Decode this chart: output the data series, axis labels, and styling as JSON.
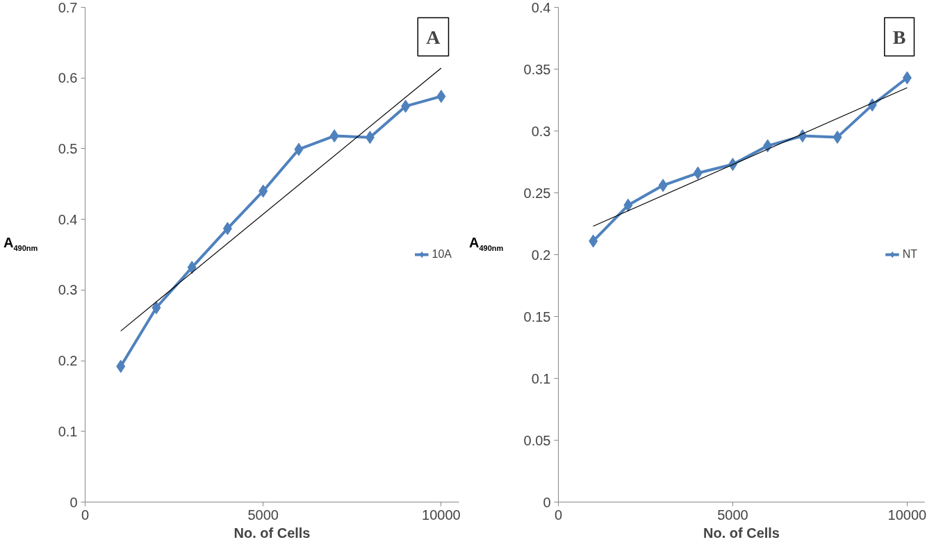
{
  "chart_data": [
    {
      "type": "line",
      "annotations": [
        "A"
      ],
      "xlabel": "No. of Cells",
      "ylabel": "A$_{490nm}$",
      "xlim": [
        0,
        10500
      ],
      "xticks": [
        0,
        5000,
        10000
      ],
      "ylim": [
        0,
        0.7
      ],
      "yticks": [
        0,
        0.1,
        0.2,
        0.3,
        0.4,
        0.5,
        0.6,
        0.7
      ],
      "grid": false,
      "legend": "right",
      "line_style": "solid",
      "series": [
        {
          "name": "10A",
          "color": "#4f81bd",
          "marker": "diamond",
          "x": [
            1000,
            2000,
            3000,
            4000,
            5000,
            6000,
            7000,
            8000,
            9000,
            10000
          ],
          "values": [
            0.192,
            0.275,
            0.332,
            0.387,
            0.44,
            0.499,
            0.518,
            0.516,
            0.56,
            0.574
          ]
        },
        {
          "color": "#000000",
          "marker": "none",
          "x": [
            1000,
            10000
          ],
          "values": [
            0.242,
            0.614
          ]
        }
      ]
    },
    {
      "type": "line",
      "annotations": [
        "B"
      ],
      "xlabel": "No. of Cells",
      "ylabel": "A$_{490nm}$",
      "xlim": [
        0,
        10500
      ],
      "xticks": [
        0,
        5000,
        10000
      ],
      "ylim": [
        0,
        0.4
      ],
      "yticks": [
        0,
        0.05,
        0.1,
        0.15,
        0.2,
        0.25,
        0.3,
        0.35,
        0.4
      ],
      "grid": false,
      "legend": "right",
      "line_style": "solid",
      "series": [
        {
          "name": "NT",
          "color": "#4f81bd",
          "marker": "diamond",
          "x": [
            1000,
            2000,
            3000,
            4000,
            5000,
            6000,
            7000,
            8000,
            9000,
            10000
          ],
          "values": [
            0.211,
            0.24,
            0.256,
            0.266,
            0.273,
            0.288,
            0.296,
            0.295,
            0.321,
            0.343
          ]
        },
        {
          "color": "#000000",
          "marker": "none",
          "x": [
            1000,
            10000
          ],
          "values": [
            0.223,
            0.335
          ]
        }
      ]
    }
  ]
}
